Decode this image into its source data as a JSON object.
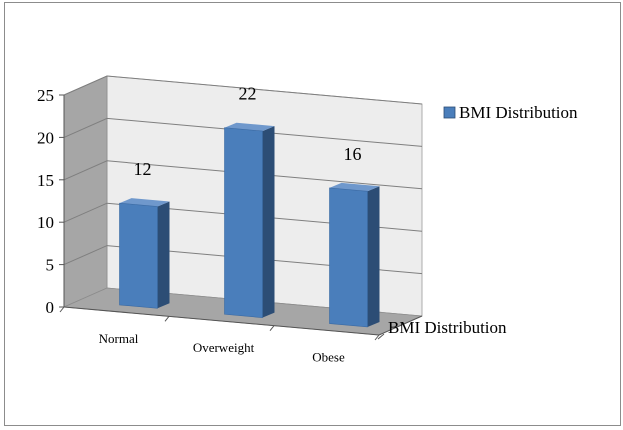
{
  "chart_data": {
    "type": "bar",
    "style": "3d-column",
    "categories": [
      "Normal",
      "Overweight",
      "Obese"
    ],
    "series": [
      {
        "name": "BMI Distribution",
        "values": [
          12,
          22,
          16
        ],
        "color": "#4a7ebb"
      }
    ],
    "data_labels": [
      "12",
      "22",
      "16"
    ],
    "y_ticks": [
      "0",
      "5",
      "10",
      "15",
      "20",
      "25"
    ],
    "ylim": [
      0,
      25
    ],
    "depth_axis_label": "BMI Distribution",
    "legend": {
      "position": "right",
      "label": "BMI Distribution"
    },
    "grid": true,
    "colors": {
      "bar_front": "#4a7ebb",
      "bar_side": "#2c4d75",
      "bar_top": "#6f98cc",
      "back_wall": "#ededed",
      "side_wall": "#a6a6a6",
      "floor": "#a6a6a6",
      "gridline": "#7f7f7f"
    }
  }
}
